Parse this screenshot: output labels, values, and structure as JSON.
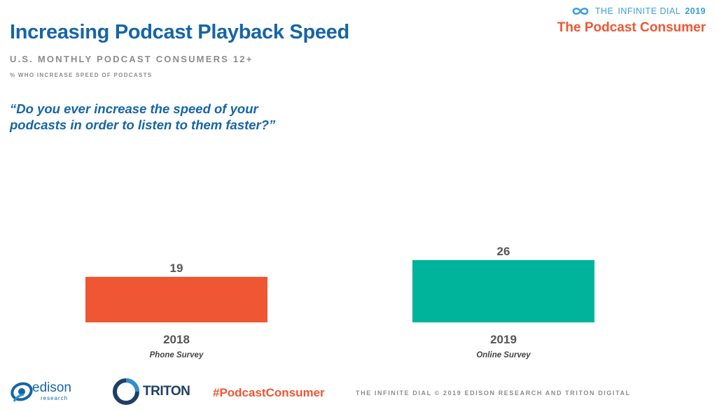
{
  "header": {
    "title": "Increasing Podcast Playback Speed",
    "subtitle": "U.S. MONTHLY PODCAST CONSUMERS 12+",
    "subsubtitle": "% WHO INCREASE SPEED OF PODCASTS",
    "question": "“Do you ever increase the speed of your podcasts in order to listen to them faster?”"
  },
  "branding": {
    "report_prefix": "THE",
    "report_name": "INFINITE DIAL",
    "report_year": "2019",
    "series_title": "The Podcast Consumer"
  },
  "footer": {
    "edison_logo_text": "edison",
    "edison_logo_subtext": "research",
    "triton_logo_text": "TRITON",
    "hashtag": "#PodcastConsumer",
    "copyright": "THE INFINITE DIAL   © 2019 EDISON RESEARCH AND TRITON DIGITAL"
  },
  "colors": {
    "title_blue": "#1565a6",
    "accent_orange": "#ef5633",
    "accent_teal": "#00b39b",
    "gray_text": "#8c8c8c"
  },
  "chart_data": {
    "type": "bar",
    "categories": [
      "2018",
      "2019"
    ],
    "category_notes": [
      "Phone Survey",
      "Online Survey"
    ],
    "values": [
      19,
      26
    ],
    "colors": [
      "#ef5633",
      "#00b39b"
    ],
    "ylim": [
      0,
      35
    ],
    "grid": false,
    "legend": "none",
    "title": "",
    "xlabel": "",
    "ylabel": ""
  }
}
